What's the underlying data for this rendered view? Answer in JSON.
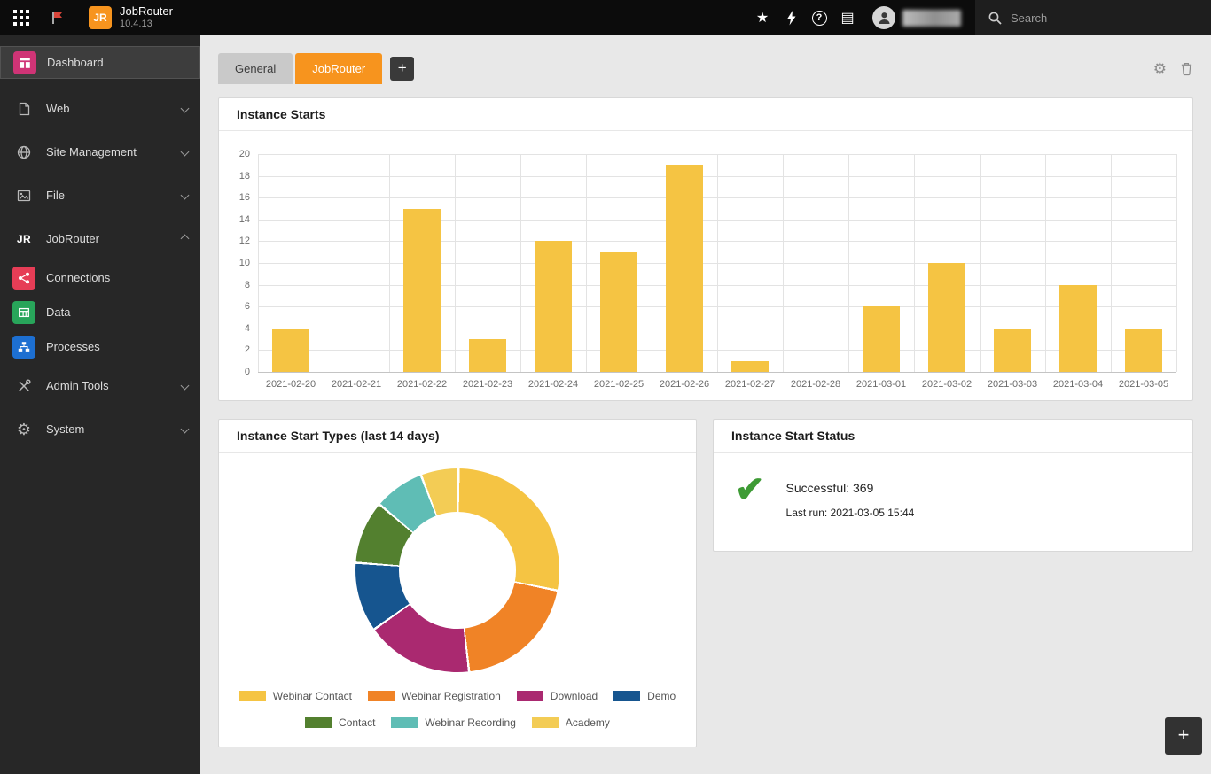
{
  "topbar": {
    "app_name": "JobRouter",
    "version": "10.4.13",
    "logo_text": "JR",
    "search": {
      "placeholder": "Search"
    }
  },
  "icons": {
    "star": "★",
    "help": "?",
    "news": "▤",
    "gear": "⚙",
    "check": "✔"
  },
  "sidebar": {
    "items": [
      {
        "label": "Dashboard",
        "active": true
      },
      {
        "label": "Web",
        "collapsible": true
      },
      {
        "label": "Site Management",
        "collapsible": true
      },
      {
        "label": "File",
        "collapsible": true
      },
      {
        "label": "JobRouter",
        "collapsible": true,
        "expanded": true
      },
      {
        "label": "Connections",
        "child_of": "JobRouter"
      },
      {
        "label": "Data",
        "child_of": "JobRouter"
      },
      {
        "label": "Processes",
        "child_of": "JobRouter"
      },
      {
        "label": "Admin Tools",
        "collapsible": true
      },
      {
        "label": "System",
        "collapsible": true
      }
    ]
  },
  "tabs": {
    "items": [
      {
        "label": "General",
        "active": false
      },
      {
        "label": "JobRouter",
        "active": true
      }
    ],
    "add_label": "+"
  },
  "widgets": {
    "instance_starts": {
      "title": "Instance Starts"
    },
    "start_types": {
      "title": "Instance Start Types (last 14 days)"
    },
    "start_status": {
      "title": "Instance Start Status",
      "successful": "Successful: 369",
      "last_run": "Last run: 2021-03-05 15:44"
    }
  },
  "fab": {
    "label": "+"
  },
  "chart_data": [
    {
      "type": "bar",
      "title": "Instance Starts",
      "categories": [
        "2021-02-20",
        "2021-02-21",
        "2021-02-22",
        "2021-02-23",
        "2021-02-24",
        "2021-02-25",
        "2021-02-26",
        "2021-02-27",
        "2021-02-28",
        "2021-03-01",
        "2021-03-02",
        "2021-03-03",
        "2021-03-04",
        "2021-03-05"
      ],
      "values": [
        4,
        0,
        15,
        3,
        12,
        11,
        19,
        1,
        0,
        6,
        10,
        4,
        8,
        4
      ],
      "xlabel": "",
      "ylabel": "",
      "ylim": [
        0,
        20
      ],
      "ytick_step": 2,
      "bar_color": "#F5C443",
      "grid": true,
      "legend_position": "none"
    },
    {
      "type": "pie",
      "donut": true,
      "title": "Instance Start Types (last 14 days)",
      "labels": [
        "Webinar Contact",
        "Webinar Registration",
        "Download",
        "Demo",
        "Contact",
        "Webinar Recording",
        "Academy"
      ],
      "values": [
        28,
        20,
        17,
        11,
        10,
        8,
        6
      ],
      "unit": "percent_estimated",
      "colors": [
        "#F5C443",
        "#F08326",
        "#AA2970",
        "#16558F",
        "#53802F",
        "#5FBDB5",
        "#F3CC55"
      ],
      "legend_position": "bottom"
    }
  ]
}
